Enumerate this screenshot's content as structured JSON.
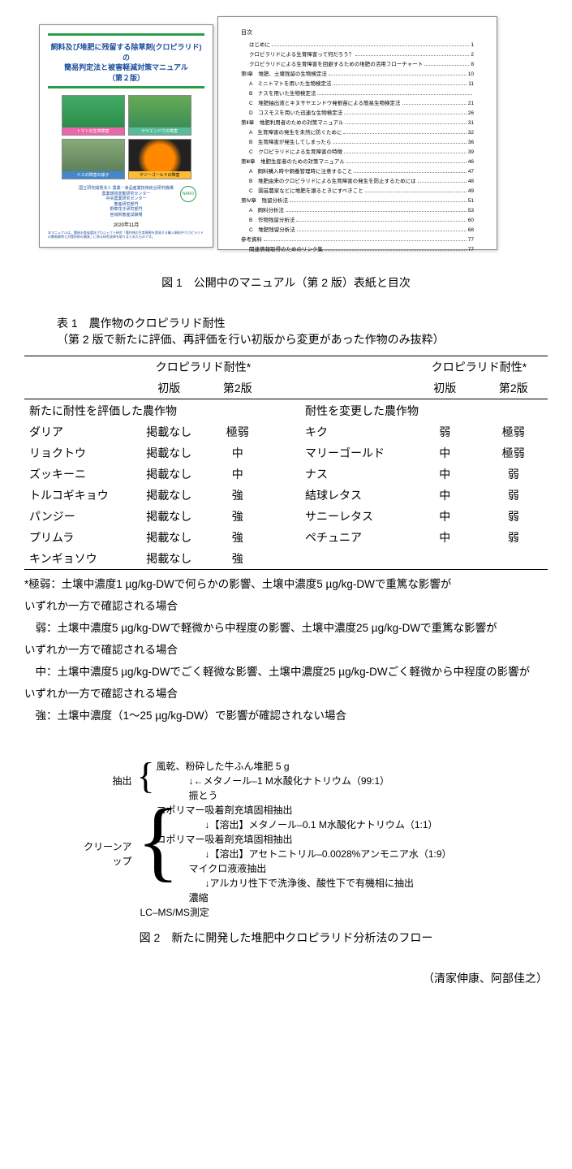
{
  "cover": {
    "title_l1": "飼料及び堆肥に残留する除草剤(クロピラリド)の",
    "title_l2": "簡易判定法と被害軽減対策マニュアル",
    "title_l3": "（第２版）",
    "photo_labels": [
      "トマトの生育障害",
      "サヤエンドウの障害",
      "ナスの障害の様子",
      "マリーゴールドの障害"
    ],
    "org_l1": "国立研究開発法人 農業・食品産業技術総合研究機構",
    "org_l2": "農業環境変動研究センター",
    "org_l3": "中央農業研究センター",
    "org_l4": "畜産研究部門",
    "org_l5": "野菜花き研究部門",
    "org_l6": "宮城県畜産試験場",
    "date": "2020年11月",
    "footer": "本マニュアルは、農林水産省委託プロジェクト研究「農作物の生育障害を誘発する輸入飼料中クロピラリドの動態解明と対策技術の開発」に係る研究成果を取りまとめたものです。",
    "logo": "NARO"
  },
  "toc": {
    "heading": "目次",
    "items": [
      {
        "indent": 1,
        "label": "はじめに",
        "page": "1"
      },
      {
        "indent": 1,
        "label": "クロピラリドによる生育障害って何だろう？",
        "page": "2"
      },
      {
        "indent": 1,
        "label": "クロピラリドによる生育障害を回避するための堆肥の活用フローチャート",
        "page": "8"
      },
      {
        "indent": 0,
        "label": "第Ⅰ章　堆肥、土壌残留の生物検定法",
        "page": "10"
      },
      {
        "indent": 1,
        "label": "A　ミニトマトを用いた生物検定法",
        "page": "11"
      },
      {
        "indent": 1,
        "label": "B　ナスを用いた生物検定法",
        "page": ""
      },
      {
        "indent": 1,
        "label": "C　堆肥抽出液とキヌサヤエンドウ発根苗による簡易生物検定法",
        "page": "21"
      },
      {
        "indent": 1,
        "label": "D　コスモスを用いた迅速な生物検定法",
        "page": "26"
      },
      {
        "indent": 0,
        "label": "第Ⅱ章　堆肥利用者のための対策マニュアル",
        "page": "31"
      },
      {
        "indent": 1,
        "label": "A　生育障害の発生を未然に防ぐために",
        "page": "32"
      },
      {
        "indent": 1,
        "label": "B　生育障害が発生してしまったら",
        "page": "36"
      },
      {
        "indent": 1,
        "label": "C　クロピラリドによる生育障害の特徴",
        "page": "39"
      },
      {
        "indent": 0,
        "label": "第Ⅲ章　堆肥生産者のための対策マニュアル",
        "page": "46"
      },
      {
        "indent": 1,
        "label": "A　飼料購入時や飼養管理時に注意すること",
        "page": "47"
      },
      {
        "indent": 1,
        "label": "B　堆肥由来のクロピラリドによる生育障害の発生を防止するためには",
        "page": "48"
      },
      {
        "indent": 1,
        "label": "C　園芸農家などに堆肥を譲るときにすべきこと",
        "page": "49"
      },
      {
        "indent": 0,
        "label": "第Ⅳ章　残留分析法",
        "page": "51"
      },
      {
        "indent": 1,
        "label": "A　飼料分析法",
        "page": "53"
      },
      {
        "indent": 1,
        "label": "B　作物残留分析法",
        "page": "60"
      },
      {
        "indent": 1,
        "label": "C　堆肥残留分析法",
        "page": "68"
      },
      {
        "indent": 0,
        "label": "参考資料",
        "page": "77"
      },
      {
        "indent": 1,
        "label": "関連情報取得のためのリンク集",
        "page": "77"
      }
    ]
  },
  "fig1_caption": "図 1　公開中のマニュアル（第 2 版）表紙と目次",
  "table1": {
    "title": "表 1　農作物のクロピラリド耐性",
    "subtitle": "（第 2 版で新たに評価、再評価を行い初版から変更があった作物のみ抜粋）",
    "head_group": "クロピラリド耐性*",
    "head_v1": "初版",
    "head_v2": "第2版",
    "left_section": "新たに耐性を評価した農作物",
    "right_section": "耐性を変更した農作物",
    "left_rows": [
      {
        "name": "ダリア",
        "v1": "掲載なし",
        "v2": "極弱"
      },
      {
        "name": "リョクトウ",
        "v1": "掲載なし",
        "v2": "中"
      },
      {
        "name": "ズッキーニ",
        "v1": "掲載なし",
        "v2": "中"
      },
      {
        "name": "トルコギキョウ",
        "v1": "掲載なし",
        "v2": "強"
      },
      {
        "name": "パンジー",
        "v1": "掲載なし",
        "v2": "強"
      },
      {
        "name": "プリムラ",
        "v1": "掲載なし",
        "v2": "強"
      },
      {
        "name": "キンギョソウ",
        "v1": "掲載なし",
        "v2": "強"
      }
    ],
    "right_rows": [
      {
        "name": "キク",
        "v1": "弱",
        "v2": "極弱"
      },
      {
        "name": "マリーゴールド",
        "v1": "中",
        "v2": "極弱"
      },
      {
        "name": "ナス",
        "v1": "中",
        "v2": "弱"
      },
      {
        "name": "結球レタス",
        "v1": "中",
        "v2": "弱"
      },
      {
        "name": "サニーレタス",
        "v1": "中",
        "v2": "弱"
      },
      {
        "name": "ペチュニア",
        "v1": "中",
        "v2": "弱"
      },
      {
        "name": "",
        "v1": "",
        "v2": ""
      }
    ]
  },
  "footnotes": {
    "l1": "*極弱：土壌中濃度1 µg/kg-DWで何らかの影響、土壌中濃度5 µg/kg-DWで重篤な影響が",
    "l2": "いずれか一方で確認される場合",
    "l3": "　弱：土壌中濃度5 µg/kg-DWで軽微から中程度の影響、土壌中濃度25 µg/kg-DWで重篤な影響が",
    "l4": "いずれか一方で確認される場合",
    "l5": "　中：土壌中濃度5 µg/kg-DWでごく軽微な影響、土壌中濃度25 µg/kg-DWごく軽微から中程度の影響が",
    "l6": "いずれか一方で確認される場合",
    "l7": "　強：土壌中濃度（1〜25 µg/kg-DW）で影響が確認されない場合"
  },
  "flow": {
    "label_extract": "抽出",
    "label_cleanup": "クリーンアップ",
    "step1": "風乾、粉砕した牛ふん堆肥 5 g",
    "step1_arrow": "↓←メタノール–1 M水酸化ナトリウム（99:1）",
    "step1b": "振とう",
    "step2": "コポリマー吸着剤充填固相抽出",
    "step2_arrow": "↓【溶出】メタノール–0.1 M水酸化ナトリウム（1:1）",
    "step3": "コポリマー吸着剤充填固相抽出",
    "step3_arrow": "↓【溶出】アセトニトリル–0.0028%アンモニア水（1:9）",
    "step4": "マイクロ液液抽出",
    "step4_arrow": "↓アルカリ性下で洗浄後、酸性下で有機相に抽出",
    "step5": "濃縮",
    "step6": "LC–MS/MS測定"
  },
  "fig2_caption": "図 2　新たに開発した堆肥中クロピラリド分析法のフロー",
  "authors": "（清家伸康、阿部佳之）"
}
